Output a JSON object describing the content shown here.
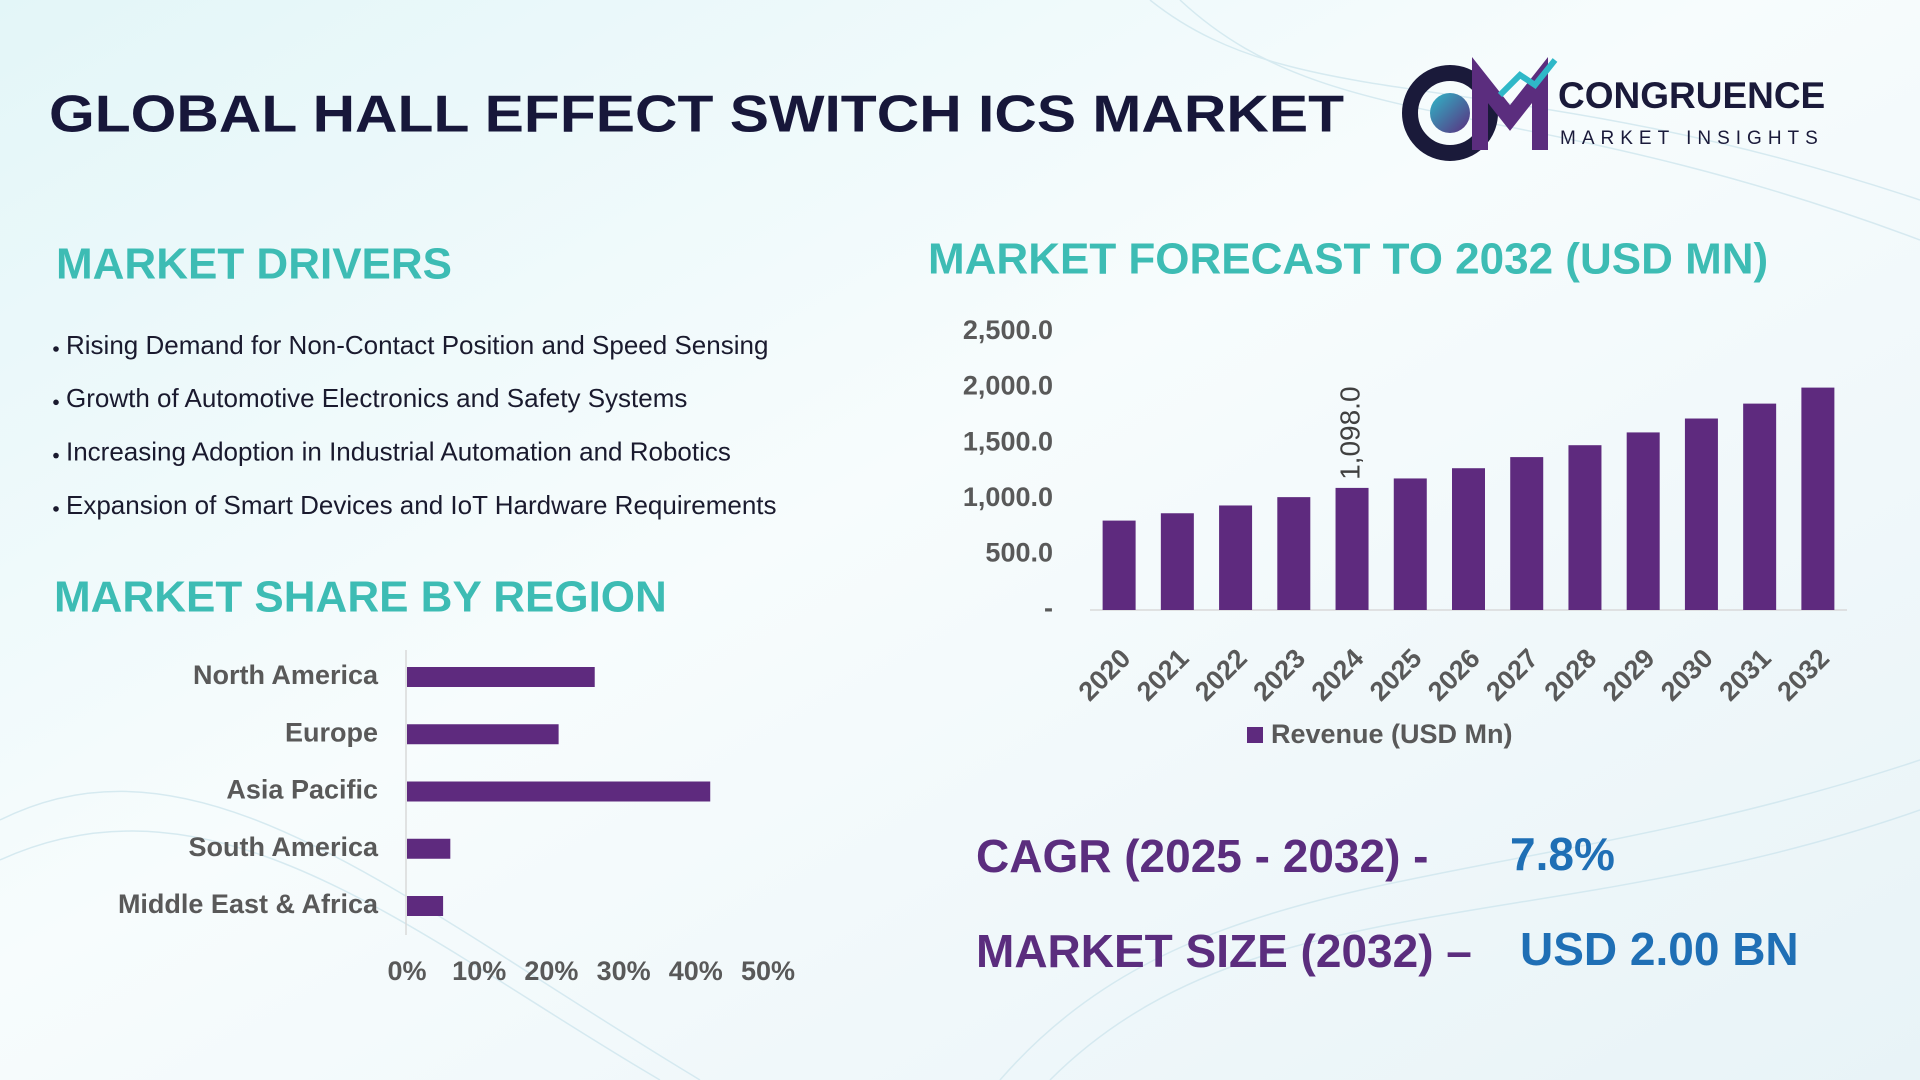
{
  "header": {
    "title": "GLOBAL HALL EFFECT SWITCH ICS MARKET",
    "logo_name": "CONGRUENCE",
    "logo_tagline": "MARKET INSIGHTS"
  },
  "drivers": {
    "heading": "MARKET DRIVERS",
    "items": [
      "Rising Demand for Non-Contact Position and Speed Sensing",
      "Growth of Automotive Electronics and Safety Systems",
      "Increasing Adoption in Industrial Automation and Robotics",
      "Expansion of Smart Devices and IoT Hardware Requirements"
    ]
  },
  "chart_data": [
    {
      "type": "bar",
      "title": "MARKET FORECAST TO 2032 (USD MN)",
      "orientation": "vertical",
      "categories": [
        "2020",
        "2021",
        "2022",
        "2023",
        "2024",
        "2025",
        "2026",
        "2027",
        "2028",
        "2029",
        "2030",
        "2031",
        "2032"
      ],
      "series": [
        {
          "name": "Revenue (USD Mn)",
          "color": "#5e2a7e",
          "values": [
            804,
            870,
            940,
            1015,
            1098,
            1183,
            1275,
            1375,
            1482,
            1597,
            1722,
            1856,
            2000
          ],
          "value_labels": [
            null,
            null,
            null,
            null,
            "1,098.0",
            null,
            null,
            null,
            null,
            null,
            null,
            null,
            null
          ]
        }
      ],
      "ylim": [
        0,
        2500
      ],
      "yticks": [
        {
          "value": 0,
          "label": "-"
        },
        {
          "value": 500,
          "label": "500.0"
        },
        {
          "value": 1000,
          "label": "1,000.0"
        },
        {
          "value": 1500,
          "label": "1,500.0"
        },
        {
          "value": 2000,
          "label": "2,000.0"
        },
        {
          "value": 2500,
          "label": "2,500.0"
        }
      ],
      "grid": false,
      "legend": "bottom"
    },
    {
      "type": "bar",
      "title": "MARKET SHARE BY REGION",
      "orientation": "horizontal",
      "categories": [
        "North America",
        "Europe",
        "Asia Pacific",
        "South America",
        "Middle East & Africa"
      ],
      "values": [
        26,
        21,
        42,
        6,
        5
      ],
      "color": "#5e2a7e",
      "xlim": [
        0,
        50
      ],
      "xticks": [
        {
          "value": 0,
          "label": "0%"
        },
        {
          "value": 10,
          "label": "10%"
        },
        {
          "value": 20,
          "label": "20%"
        },
        {
          "value": 30,
          "label": "30%"
        },
        {
          "value": 40,
          "label": "40%"
        },
        {
          "value": 50,
          "label": "50%"
        }
      ],
      "grid": false
    }
  ],
  "stats": {
    "cagr_label": "CAGR (2025 - 2032) -",
    "cagr_value": "7.8%",
    "size_label": "MARKET SIZE (2032) –",
    "size_value": "USD 2.00 BN"
  }
}
